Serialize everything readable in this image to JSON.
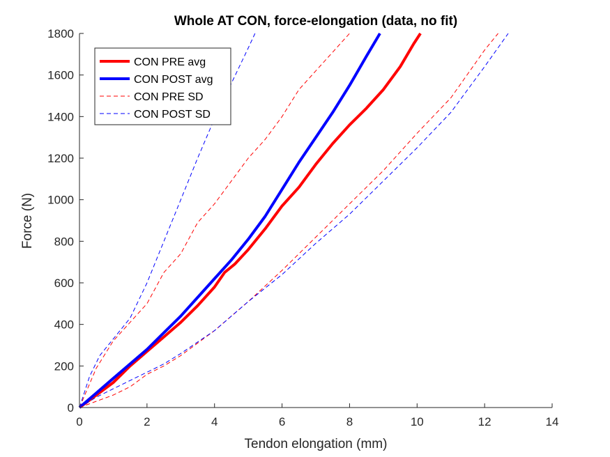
{
  "chart_data": {
    "type": "line",
    "title": "Whole AT CON, force-elongation (data, no fit)",
    "xlabel": "Tendon elongation (mm)",
    "ylabel": "Force (N)",
    "xlim": [
      0,
      14
    ],
    "ylim": [
      0,
      1800
    ],
    "xticks": [
      0,
      2,
      4,
      6,
      8,
      10,
      12,
      14
    ],
    "yticks": [
      0,
      200,
      400,
      600,
      800,
      1000,
      1200,
      1400,
      1600,
      1800
    ],
    "grid": false,
    "legend": "top-left",
    "series": [
      {
        "name": "CON PRE avg",
        "color": "#ff0000",
        "style": "solid",
        "x": [
          0,
          0.5,
          1.0,
          1.5,
          2.0,
          2.5,
          3.0,
          3.5,
          4.0,
          4.3,
          4.6,
          5.0,
          5.5,
          6.0,
          6.5,
          7.0,
          7.5,
          8.0,
          8.5,
          9.0,
          9.5,
          9.9,
          10.1
        ],
        "y": [
          0,
          60,
          120,
          200,
          270,
          340,
          410,
          490,
          580,
          650,
          690,
          760,
          860,
          970,
          1060,
          1170,
          1270,
          1360,
          1440,
          1530,
          1640,
          1750,
          1800
        ]
      },
      {
        "name": "CON POST avg",
        "color": "#0000ff",
        "style": "solid",
        "x": [
          0,
          0.5,
          1.0,
          1.5,
          2.0,
          2.5,
          3.0,
          3.5,
          4.0,
          4.5,
          5.0,
          5.5,
          6.0,
          6.5,
          7.0,
          7.5,
          8.0,
          8.5,
          8.9
        ],
        "y": [
          0,
          70,
          140,
          210,
          280,
          360,
          440,
          530,
          620,
          710,
          810,
          920,
          1050,
          1180,
          1300,
          1420,
          1550,
          1690,
          1800
        ]
      },
      {
        "name": "CON PRE SD",
        "color": "#ff0000",
        "style": "dashed",
        "x": [
          0,
          0.5,
          1.0,
          1.5,
          2.0,
          2.5,
          3.0,
          3.5,
          4.0,
          4.5,
          5.0,
          5.5,
          6.0,
          6.5,
          7.0,
          7.5,
          8.0
        ],
        "y": [
          0,
          190,
          320,
          410,
          500,
          650,
          740,
          890,
          980,
          1090,
          1200,
          1290,
          1400,
          1530,
          1620,
          1710,
          1800
        ]
      },
      {
        "name": "",
        "color": "#ff0000",
        "style": "dashed",
        "x": [
          0,
          0.5,
          1.0,
          1.5,
          2.0,
          2.5,
          3.0,
          4.0,
          5.0,
          6.0,
          7.0,
          8.0,
          9.0,
          10.0,
          11.0,
          12.0,
          12.4
        ],
        "y": [
          0,
          30,
          60,
          100,
          160,
          200,
          250,
          370,
          510,
          660,
          820,
          980,
          1140,
          1320,
          1490,
          1720,
          1800
        ]
      },
      {
        "name": "CON POST SD",
        "color": "#0000ff",
        "style": "dashed",
        "x": [
          0,
          0.3,
          0.6,
          1.0,
          1.5,
          2.0,
          2.5,
          3.0,
          3.5,
          4.0,
          4.5,
          5.0,
          5.2
        ],
        "y": [
          0,
          150,
          250,
          330,
          430,
          600,
          800,
          1000,
          1200,
          1390,
          1560,
          1730,
          1800
        ]
      },
      {
        "name": "",
        "color": "#0000ff",
        "style": "dashed",
        "x": [
          0,
          0.5,
          1.0,
          1.5,
          2.0,
          2.5,
          3.0,
          4.0,
          5.0,
          6.0,
          7.0,
          8.0,
          9.0,
          10.0,
          11.0,
          12.0,
          12.7
        ],
        "y": [
          0,
          50,
          90,
          130,
          170,
          210,
          260,
          370,
          510,
          640,
          790,
          930,
          1090,
          1250,
          1420,
          1640,
          1800
        ]
      }
    ]
  }
}
